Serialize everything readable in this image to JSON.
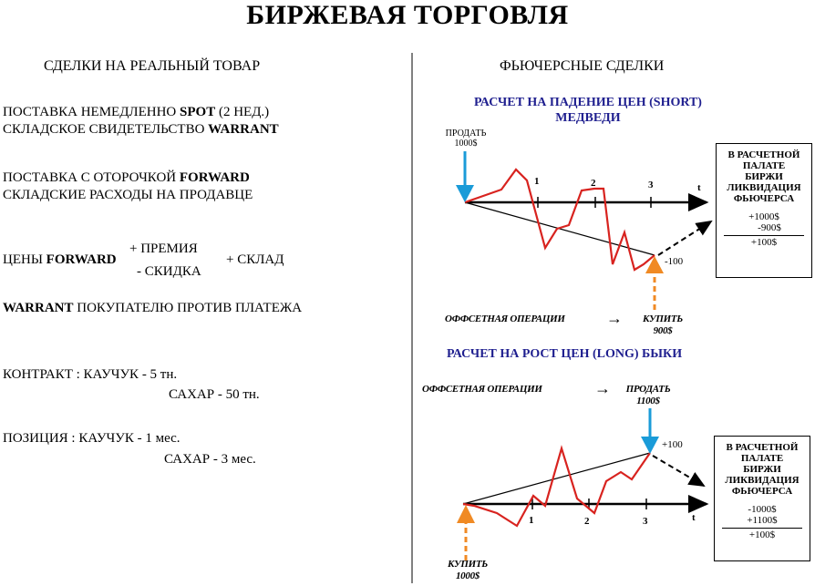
{
  "title": "БИРЖЕВАЯ ТОРГОВЛЯ",
  "left": {
    "heading": "СДЕЛКИ НА РЕАЛЬНЫЙ ТОВАР",
    "spot_line1_pre": "ПОСТАВКА НЕМЕДЛЕННО ",
    "spot_line1_bold": "SPOT",
    "spot_line1_post": " (2 НЕД.)",
    "spot_line2_pre": "СКЛАДСКОЕ СВИДЕТЕЛЬСТВО ",
    "spot_line2_bold": "WARRANT",
    "fwd_line1_pre": "ПОСТАВКА С ОТОРОЧКОЙ ",
    "fwd_line1_bold": "FORWARD",
    "fwd_line2": "СКЛАДСКИЕ РАСХОДЫ НА ПРОДАВЦЕ",
    "prices_pre": "ЦЕНЫ ",
    "prices_bold": "FORWARD",
    "premium": "+  ПРЕМИЯ",
    "discount": "- СКИДКА",
    "warehouse": "+  СКЛАД",
    "warrant_bold": "WARRANT",
    "warrant_post": " ПОКУПАТЕЛЮ ПРОТИВ ПЛАТЕЖА",
    "contract_label": "КОНТРАКТ : КАУЧУК - 5 тн.",
    "contract_sugar": "САХАР - 50 тн.",
    "position_label": "ПОЗИЦИЯ : КАУЧУК - 1 мес.",
    "position_sugar": "САХАР - 3 мес."
  },
  "right": {
    "heading": "ФЬЮЧЕРСНЫЕ СДЕЛКИ",
    "short": {
      "title1": "РАСЧЕТ НА ПАДЕНИЕ ЦЕН (SHORT)",
      "title2": "МЕДВЕДИ",
      "sell_label": "ПРОДАТЬ",
      "sell_price": "1000$",
      "ticks": [
        "1",
        "2",
        "3"
      ],
      "t": "t",
      "result": "-100",
      "offset_label": "ОФФСЕТНАЯ ОПЕРАЦИИ",
      "arrow": "→",
      "buy_label": "КУПИТЬ",
      "buy_price": "900$",
      "box_title": [
        "В РАСЧЕТНОЙ",
        "ПАЛАТЕ",
        "БИРЖИ",
        "ЛИКВИДАЦИЯ",
        "ФЬЮЧЕРСА"
      ],
      "box_v1": "+1000$",
      "box_v2": "-900$",
      "box_total": "+100$"
    },
    "long": {
      "title": "РАСЧЕТ НА РОСТ ЦЕН (LONG) БЫКИ",
      "offset_label": "ОФФСЕТНАЯ ОПЕРАЦИИ",
      "arrow": "→",
      "sell_label": "ПРОДАТЬ",
      "sell_price": "1100$",
      "result": "+100",
      "ticks": [
        "1",
        "2",
        "3"
      ],
      "t": "t",
      "buy_label": "КУПИТЬ",
      "buy_price": "1000$",
      "box_title": [
        "В РАСЧЕТНОЙ",
        "ПАЛАТЕ",
        "БИРЖИ",
        "ЛИКВИДАЦИЯ",
        "ФЬЮЧЕРСА"
      ],
      "box_v1": "-1000$",
      "box_v2": "+1100$",
      "box_total": "+100$"
    }
  },
  "colors": {
    "price_line": "#d8231f",
    "sell_arrow": "#1a9bd8",
    "buy_arrow": "#f08a24",
    "heading_blue": "#1f1f8f"
  }
}
